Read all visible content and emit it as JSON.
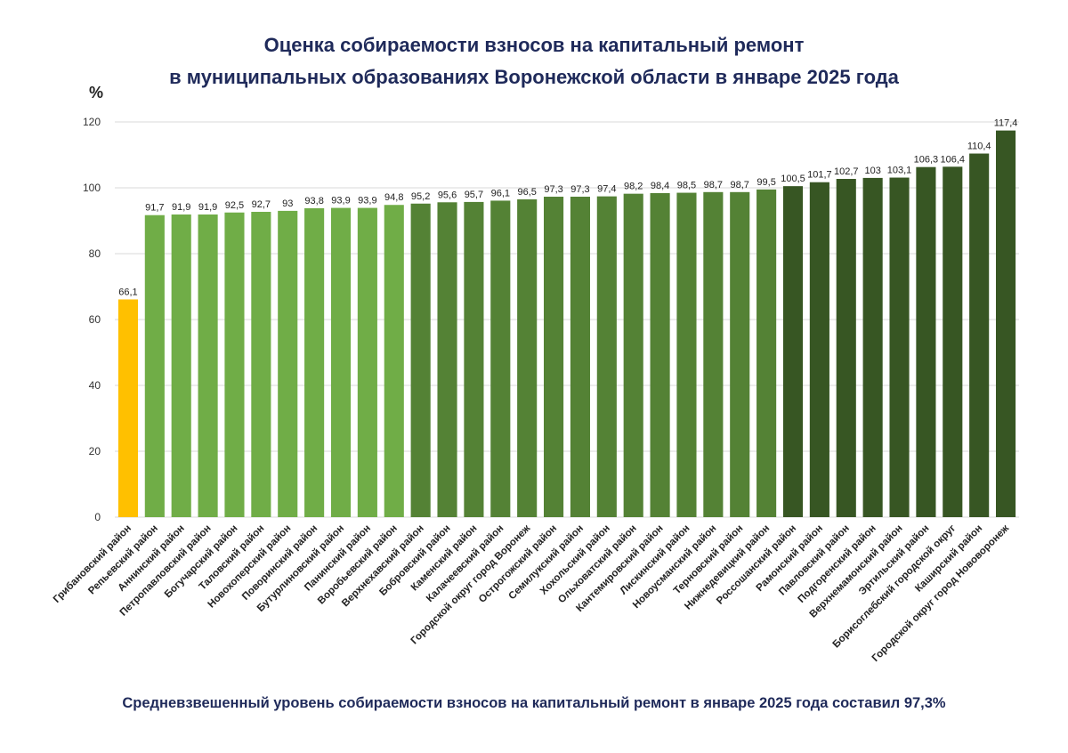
{
  "chart_data": {
    "type": "bar",
    "title": "Оценка собираемости взносов на капитальный ремонт",
    "subtitle": "в муниципальных образованиях Воронежской области в январе 2025 года",
    "ylabel": "%",
    "xlabel": "",
    "ylim": [
      0,
      120
    ],
    "yticks": [
      0,
      20,
      40,
      60,
      80,
      100,
      120
    ],
    "grid": true,
    "categories": [
      "Грибановский район",
      "Репьевский район",
      "Аннинский район",
      "Петропавловский район",
      "Богучарский район",
      "Таловский район",
      "Новохоперский район",
      "Поворинский район",
      "Бутурлиновский район",
      "Панинский район",
      "Воробьевский район",
      "Верхнехавский район",
      "Бобровский район",
      "Каменский район",
      "Калачеевский район",
      "Городской округ город Воронеж",
      "Острогожский район",
      "Семилукский район",
      "Хохольский район",
      "Ольховатский район",
      "Кантемировский район",
      "Лискинский район",
      "Новоусманский район",
      "Терновский район",
      "Нижнедевицкий район",
      "Россошанский район",
      "Рамонский район",
      "Павловский район",
      "Подгоренский район",
      "Верхнемамонский район",
      "Эртильский район",
      "Борисоглебский городской округ",
      "Каширский район",
      "Городской округ город Нововоронеж"
    ],
    "values": [
      66.1,
      91.7,
      91.9,
      91.9,
      92.5,
      92.7,
      93,
      93.8,
      93.9,
      93.9,
      94.8,
      95.2,
      95.6,
      95.7,
      96.1,
      96.5,
      97.3,
      97.3,
      97.4,
      98.2,
      98.4,
      98.5,
      98.7,
      98.7,
      99.5,
      100.5,
      101.7,
      102.7,
      103,
      103.1,
      106.3,
      106.4,
      110.4,
      117.4
    ],
    "data_labels": [
      "66,1",
      "91,7",
      "91,9",
      "91,9",
      "92,5",
      "92,7",
      "93",
      "93,8",
      "93,9",
      "93,9",
      "94,8",
      "95,2",
      "95,6",
      "95,7",
      "96,1",
      "96,5",
      "97,3",
      "97,3",
      "97,4",
      "98,2",
      "98,4",
      "98,5",
      "98,7",
      "98,7",
      "99,5",
      "100,5",
      "101,7",
      "102,7",
      "103",
      "103,1",
      "106,3",
      "106,4",
      "110,4",
      "117,4"
    ],
    "colors": {
      "below_80": "#ffc000",
      "80_to_95": "#70ad47",
      "95_to_100": "#548235",
      "100_plus": "#375623",
      "grid": "#d9d9d9"
    },
    "footnote": "Средневзвешенный уровень собираемости взносов на капитальный ремонт в январе 2025 года составил 97,3%"
  }
}
